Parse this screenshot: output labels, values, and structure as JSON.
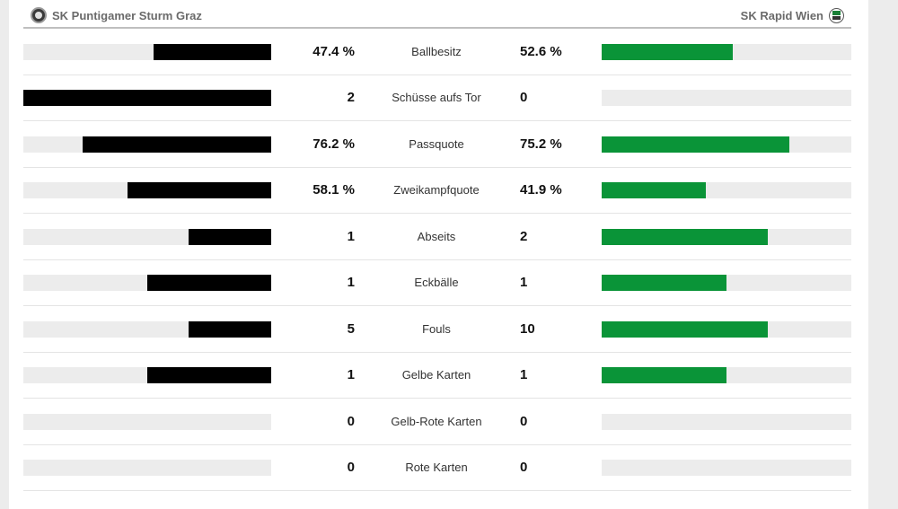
{
  "teams": {
    "home": "SK Puntigamer Sturm Graz",
    "away": "SK Rapid Wien"
  },
  "colors": {
    "home_bar": "#000000",
    "away_bar": "#0a9438",
    "track": "#ececec"
  },
  "stats": [
    {
      "label": "Ballbesitz",
      "home": "47.4 %",
      "away": "52.6 %",
      "home_fill": 0.474,
      "away_fill": 0.526
    },
    {
      "label": "Schüsse aufs Tor",
      "home": "2",
      "away": "0",
      "home_fill": 1.0,
      "away_fill": 0.0
    },
    {
      "label": "Passquote",
      "home": "76.2 %",
      "away": "75.2 %",
      "home_fill": 0.762,
      "away_fill": 0.752
    },
    {
      "label": "Zweikampfquote",
      "home": "58.1 %",
      "away": "41.9 %",
      "home_fill": 0.581,
      "away_fill": 0.419
    },
    {
      "label": "Abseits",
      "home": "1",
      "away": "2",
      "home_fill": 0.333,
      "away_fill": 0.667
    },
    {
      "label": "Eckbälle",
      "home": "1",
      "away": "1",
      "home_fill": 0.5,
      "away_fill": 0.5
    },
    {
      "label": "Fouls",
      "home": "5",
      "away": "10",
      "home_fill": 0.333,
      "away_fill": 0.667
    },
    {
      "label": "Gelbe Karten",
      "home": "1",
      "away": "1",
      "home_fill": 0.5,
      "away_fill": 0.5
    },
    {
      "label": "Gelb-Rote Karten",
      "home": "0",
      "away": "0",
      "home_fill": 0.0,
      "away_fill": 0.0
    },
    {
      "label": "Rote Karten",
      "home": "0",
      "away": "0",
      "home_fill": 0.0,
      "away_fill": 0.0
    }
  ]
}
